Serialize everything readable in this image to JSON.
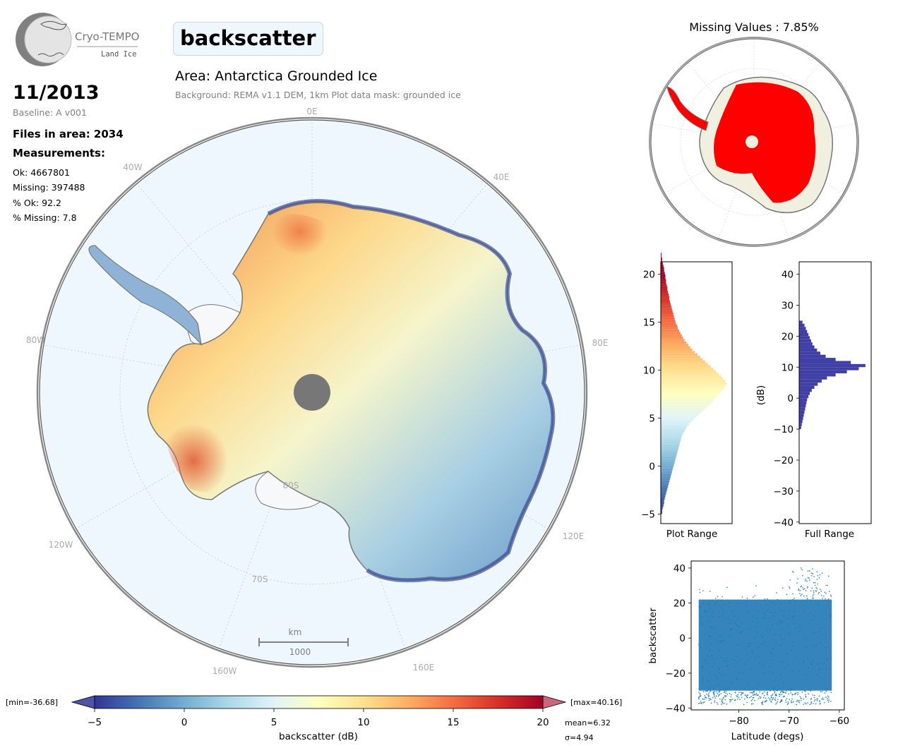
{
  "header": {
    "logo_title": "Cryo-TEMPO",
    "logo_subtitle": "Land Ice",
    "parameter": "backscatter",
    "area_title": "Area: Antarctica Grounded Ice",
    "background_note": "Background: REMA v1.1 DEM, 1km   Plot data mask: grounded ice"
  },
  "info": {
    "date": "11/2013",
    "baseline": "Baseline: A v001",
    "files": "Files in area: 2034",
    "measurements_title": "Measurements:",
    "ok": "Ok: 4667801",
    "missing": "Missing: 397488",
    "pct_ok": "% Ok: 92.2",
    "pct_missing": "% Missing: 7.8"
  },
  "main_map": {
    "lon_labels": [
      "0E",
      "40E",
      "80E",
      "120E",
      "160E",
      "160W",
      "120W",
      "80W",
      "40W"
    ],
    "lat_labels": [
      "80S",
      "70S"
    ],
    "scale_unit": "km",
    "scale_value": "1000",
    "colors": {
      "ocean": "#eef7fd",
      "shelf": "#f6f8fa",
      "coast": "#777777",
      "pole": "#777777"
    }
  },
  "mini_map": {
    "title": "Missing Values : 7.85%",
    "colors": {
      "land": "#f1efdf",
      "data": "#ff0000"
    }
  },
  "colorbar": {
    "min_label": "[min=-36.68]",
    "max_label": "[max=40.16]",
    "ticks": [
      "−5",
      "0",
      "5",
      "10",
      "15",
      "20"
    ],
    "label": "backscatter (dB)",
    "mean": "mean=6.32",
    "sigma": "σ=4.94",
    "cmap": [
      "#313695",
      "#4575b4",
      "#74add1",
      "#abd9e9",
      "#e0f3f8",
      "#ffffbf",
      "#fee090",
      "#fdae61",
      "#f46d43",
      "#d73027",
      "#a50026"
    ]
  },
  "chart_data": [
    {
      "type": "bar",
      "orientation": "horizontal",
      "xlabel": "Plot Range",
      "ylabel": "",
      "ylim": [
        -6,
        21.3
      ],
      "yticks": [
        -5,
        0,
        5,
        10,
        15,
        20
      ],
      "bins_start": -5,
      "bin_width": 0.25,
      "values": [
        0.02,
        0.02,
        0.03,
        0.04,
        0.05,
        0.05,
        0.06,
        0.07,
        0.08,
        0.09,
        0.1,
        0.11,
        0.12,
        0.13,
        0.14,
        0.15,
        0.16,
        0.17,
        0.18,
        0.19,
        0.2,
        0.21,
        0.22,
        0.23,
        0.24,
        0.25,
        0.26,
        0.27,
        0.28,
        0.29,
        0.3,
        0.31,
        0.32,
        0.34,
        0.36,
        0.38,
        0.4,
        0.43,
        0.46,
        0.5,
        0.54,
        0.58,
        0.62,
        0.66,
        0.7,
        0.74,
        0.78,
        0.81,
        0.84,
        0.87,
        0.9,
        0.93,
        0.96,
        0.98,
        1.0,
        0.98,
        0.95,
        0.92,
        0.88,
        0.84,
        0.8,
        0.76,
        0.72,
        0.68,
        0.64,
        0.6,
        0.56,
        0.52,
        0.48,
        0.45,
        0.42,
        0.39,
        0.36,
        0.34,
        0.32,
        0.3,
        0.28,
        0.26,
        0.25,
        0.23,
        0.22,
        0.21,
        0.2,
        0.19,
        0.18,
        0.17,
        0.16,
        0.15,
        0.14,
        0.13,
        0.13,
        0.12,
        0.11,
        0.1,
        0.1,
        0.09,
        0.08,
        0.08,
        0.07,
        0.07,
        0.06,
        0.05,
        0.05,
        0.04,
        0.03,
        0.02,
        0.02,
        0.01,
        0.01
      ]
    },
    {
      "type": "bar",
      "orientation": "horizontal",
      "xlabel": "Full Range",
      "ylabel": "(dB)",
      "ylim": [
        -40.5,
        44
      ],
      "yticks": [
        -40,
        -30,
        -20,
        -10,
        0,
        10,
        20,
        30,
        40
      ],
      "color": "#3f3fa6",
      "bins_start": -10,
      "bin_width": 1,
      "values": [
        0.03,
        0.04,
        0.05,
        0.06,
        0.07,
        0.08,
        0.09,
        0.1,
        0.11,
        0.12,
        0.14,
        0.16,
        0.19,
        0.23,
        0.28,
        0.34,
        0.42,
        0.55,
        0.72,
        0.9,
        1.0,
        0.78,
        0.55,
        0.4,
        0.32,
        0.27,
        0.23,
        0.2,
        0.18,
        0.16,
        0.14,
        0.12,
        0.1,
        0.08,
        0.05
      ]
    },
    {
      "type": "scatter",
      "xlabel": "Latitude (degs)",
      "ylabel": "backscatter",
      "xlim": [
        -89.5,
        -59
      ],
      "ylim": [
        -41,
        44
      ],
      "xticks": [
        -80,
        -70,
        -60
      ],
      "yticks": [
        -40,
        -20,
        0,
        20,
        40
      ],
      "color": "#1f77b4",
      "x_range": [
        -88,
        -61.5
      ],
      "y_core_range": [
        -30,
        22
      ],
      "y_outlier_max": 40
    }
  ]
}
